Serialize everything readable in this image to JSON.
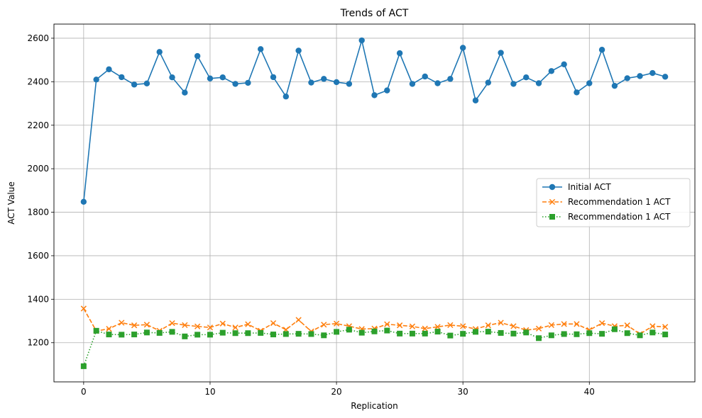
{
  "chart_data": {
    "type": "line",
    "title": "Trends of ACT",
    "xlabel": "Replication",
    "ylabel": "ACT Value",
    "xlim": [
      -2.35,
      48.35
    ],
    "ylim": [
      1020,
      2665
    ],
    "xticks": [
      0,
      10,
      20,
      30,
      40
    ],
    "yticks": [
      1200,
      1400,
      1600,
      1800,
      2000,
      2200,
      2400,
      2600
    ],
    "grid": true,
    "legend_position": "center-right",
    "x": [
      0,
      1,
      2,
      3,
      4,
      5,
      6,
      7,
      8,
      9,
      10,
      11,
      12,
      13,
      14,
      15,
      16,
      17,
      18,
      19,
      20,
      21,
      22,
      23,
      24,
      25,
      26,
      27,
      28,
      29,
      30,
      31,
      32,
      33,
      34,
      35,
      36,
      37,
      38,
      39,
      40,
      41,
      42,
      43,
      44,
      45,
      46
    ],
    "series": [
      {
        "name": "Initial ACT",
        "color": "#1f77b4",
        "line_style": "solid",
        "marker": "circle",
        "values": [
          1848,
          2410,
          2457,
          2421,
          2387,
          2392,
          2537,
          2420,
          2350,
          2518,
          2415,
          2420,
          2390,
          2395,
          2550,
          2421,
          2332,
          2543,
          2396,
          2413,
          2398,
          2390,
          2590,
          2338,
          2360,
          2531,
          2390,
          2424,
          2393,
          2413,
          2556,
          2314,
          2396,
          2533,
          2390,
          2420,
          2393,
          2449,
          2480,
          2351,
          2393,
          2547,
          2381,
          2416,
          2426,
          2440,
          2423
        ]
      },
      {
        "name": "Recommendation 1 ACT",
        "color": "#ff7f0e",
        "line_style": "dashed",
        "marker": "x",
        "values": [
          1357,
          1254,
          1264,
          1292,
          1280,
          1283,
          1255,
          1290,
          1281,
          1275,
          1270,
          1288,
          1270,
          1285,
          1255,
          1290,
          1260,
          1305,
          1252,
          1283,
          1288,
          1276,
          1263,
          1265,
          1285,
          1280,
          1275,
          1265,
          1273,
          1281,
          1276,
          1263,
          1280,
          1292,
          1276,
          1258,
          1265,
          1281,
          1286,
          1286,
          1258,
          1290,
          1276,
          1280,
          1240,
          1276,
          1273
        ]
      },
      {
        "name": "Recommendation 1 ACT",
        "color": "#2ca02c",
        "line_style": "dotted",
        "marker": "square",
        "values": [
          1092,
          1255,
          1238,
          1237,
          1238,
          1247,
          1245,
          1250,
          1229,
          1237,
          1237,
          1246,
          1244,
          1244,
          1245,
          1238,
          1240,
          1241,
          1240,
          1234,
          1250,
          1260,
          1246,
          1252,
          1256,
          1242,
          1242,
          1242,
          1251,
          1233,
          1241,
          1250,
          1251,
          1245,
          1242,
          1247,
          1221,
          1234,
          1240,
          1239,
          1244,
          1241,
          1262,
          1244,
          1234,
          1247,
          1238
        ]
      }
    ]
  }
}
